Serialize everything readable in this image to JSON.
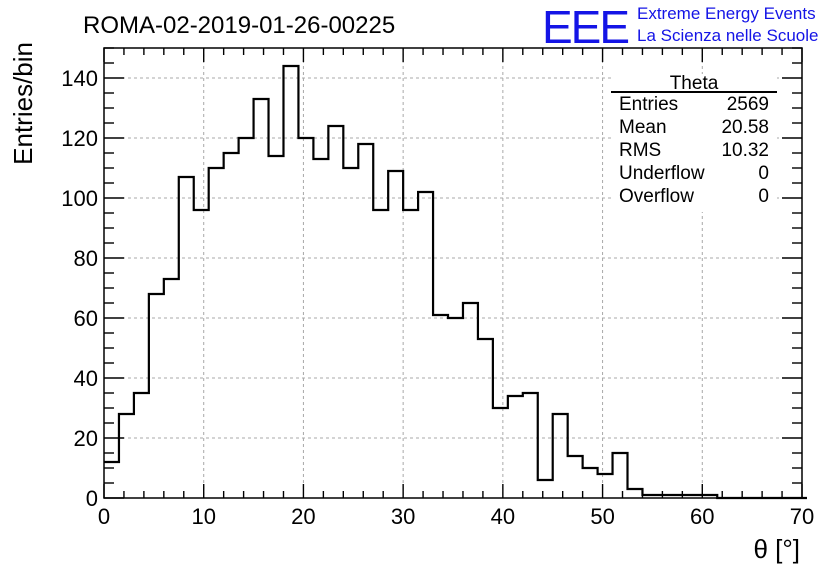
{
  "chart_data": {
    "type": "histogram",
    "title": "ROMA-02-2019-01-26-00225",
    "xlabel": "θ [°]",
    "ylabel": "Entries/bin",
    "xlim": [
      0,
      70
    ],
    "ylim": [
      0,
      150
    ],
    "bin_width": 1.5,
    "bin_start": 0,
    "values": [
      12,
      28,
      35,
      68,
      73,
      107,
      96,
      110,
      115,
      120,
      133,
      114,
      144,
      120,
      113,
      124,
      110,
      118,
      96,
      109,
      96,
      102,
      61,
      60,
      65,
      53,
      30,
      34,
      35,
      6,
      28,
      14,
      10,
      8,
      15,
      3,
      1,
      1,
      1,
      1,
      1,
      0,
      0,
      0,
      0,
      0,
      0
    ],
    "x_ticks": [
      0,
      10,
      20,
      30,
      40,
      50,
      60,
      70
    ],
    "x_tick_labels": [
      "0",
      "10",
      "20",
      "30",
      "40",
      "50",
      "60",
      "70"
    ],
    "y_ticks": [
      0,
      20,
      40,
      60,
      80,
      100,
      120,
      140
    ],
    "y_tick_labels": [
      "0",
      "20",
      "40",
      "60",
      "80",
      "100",
      "120",
      "140"
    ],
    "grid": true,
    "stats_box": {
      "title": "Theta",
      "rows": [
        {
          "label": "Entries",
          "value": "2569"
        },
        {
          "label": "Mean",
          "value": "20.58"
        },
        {
          "label": "RMS",
          "value": "10.32"
        },
        {
          "label": "Underflow",
          "value": "0"
        },
        {
          "label": "Overflow",
          "value": "0"
        }
      ]
    },
    "legend_placement": "top-right"
  },
  "logo": {
    "mark": "EEE",
    "line1": "Extreme Energy Events",
    "line2": "La Scienza nelle Scuole",
    "color": "#1414e6"
  }
}
